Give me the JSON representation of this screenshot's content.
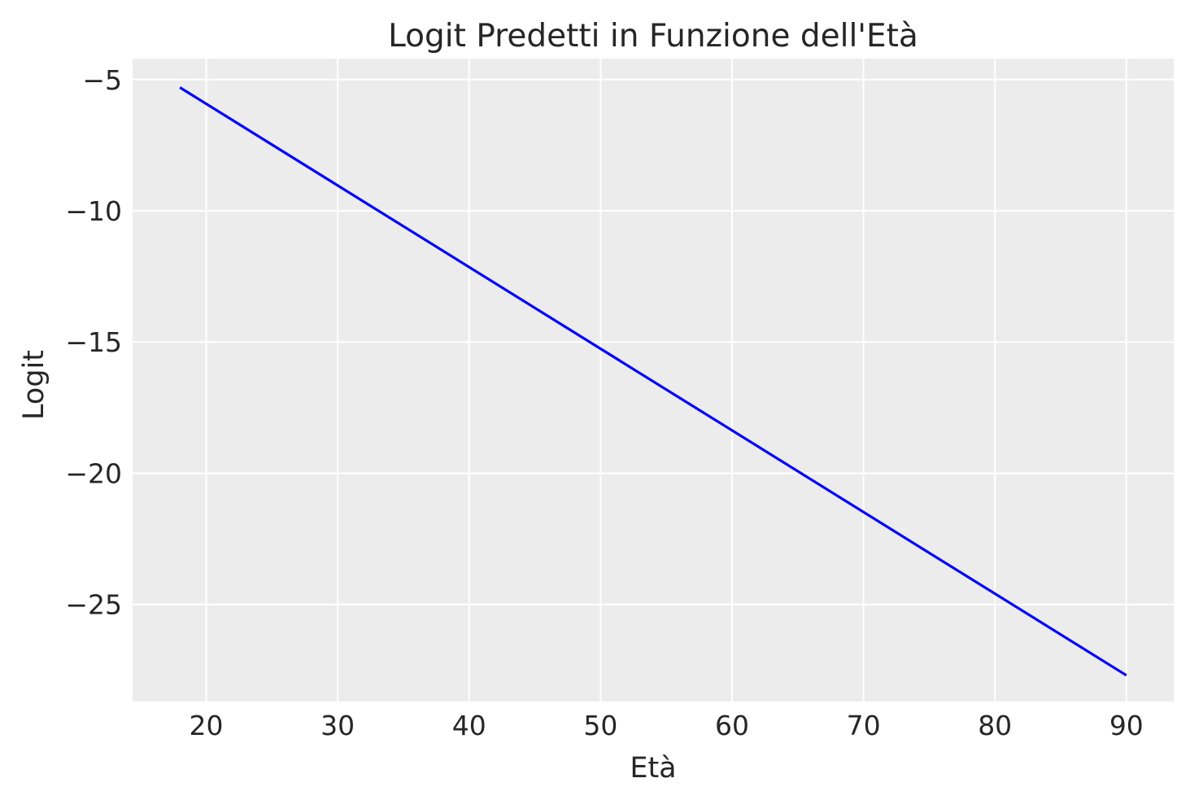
{
  "chart_data": {
    "type": "line",
    "title": "Logit Predetti in Funzione dell'Età",
    "xlabel": "Età",
    "ylabel": "Logit",
    "xlim": [
      14.4,
      93.6
    ],
    "ylim": [
      -28.7,
      -4.2
    ],
    "xticks": [
      20,
      30,
      40,
      50,
      60,
      70,
      80,
      90
    ],
    "yticks": [
      -5,
      -10,
      -15,
      -20,
      -25
    ],
    "xtick_labels": [
      "20",
      "30",
      "40",
      "50",
      "60",
      "70",
      "80",
      "90"
    ],
    "ytick_labels": [
      "−5",
      "−10",
      "−15",
      "−20",
      "−25"
    ],
    "grid": true,
    "background_color": "#ececec",
    "grid_color": "#ffffff",
    "series": [
      {
        "color": "#0000ff",
        "x": [
          18,
          90
        ],
        "y": [
          -5.3,
          -27.7
        ]
      }
    ]
  }
}
